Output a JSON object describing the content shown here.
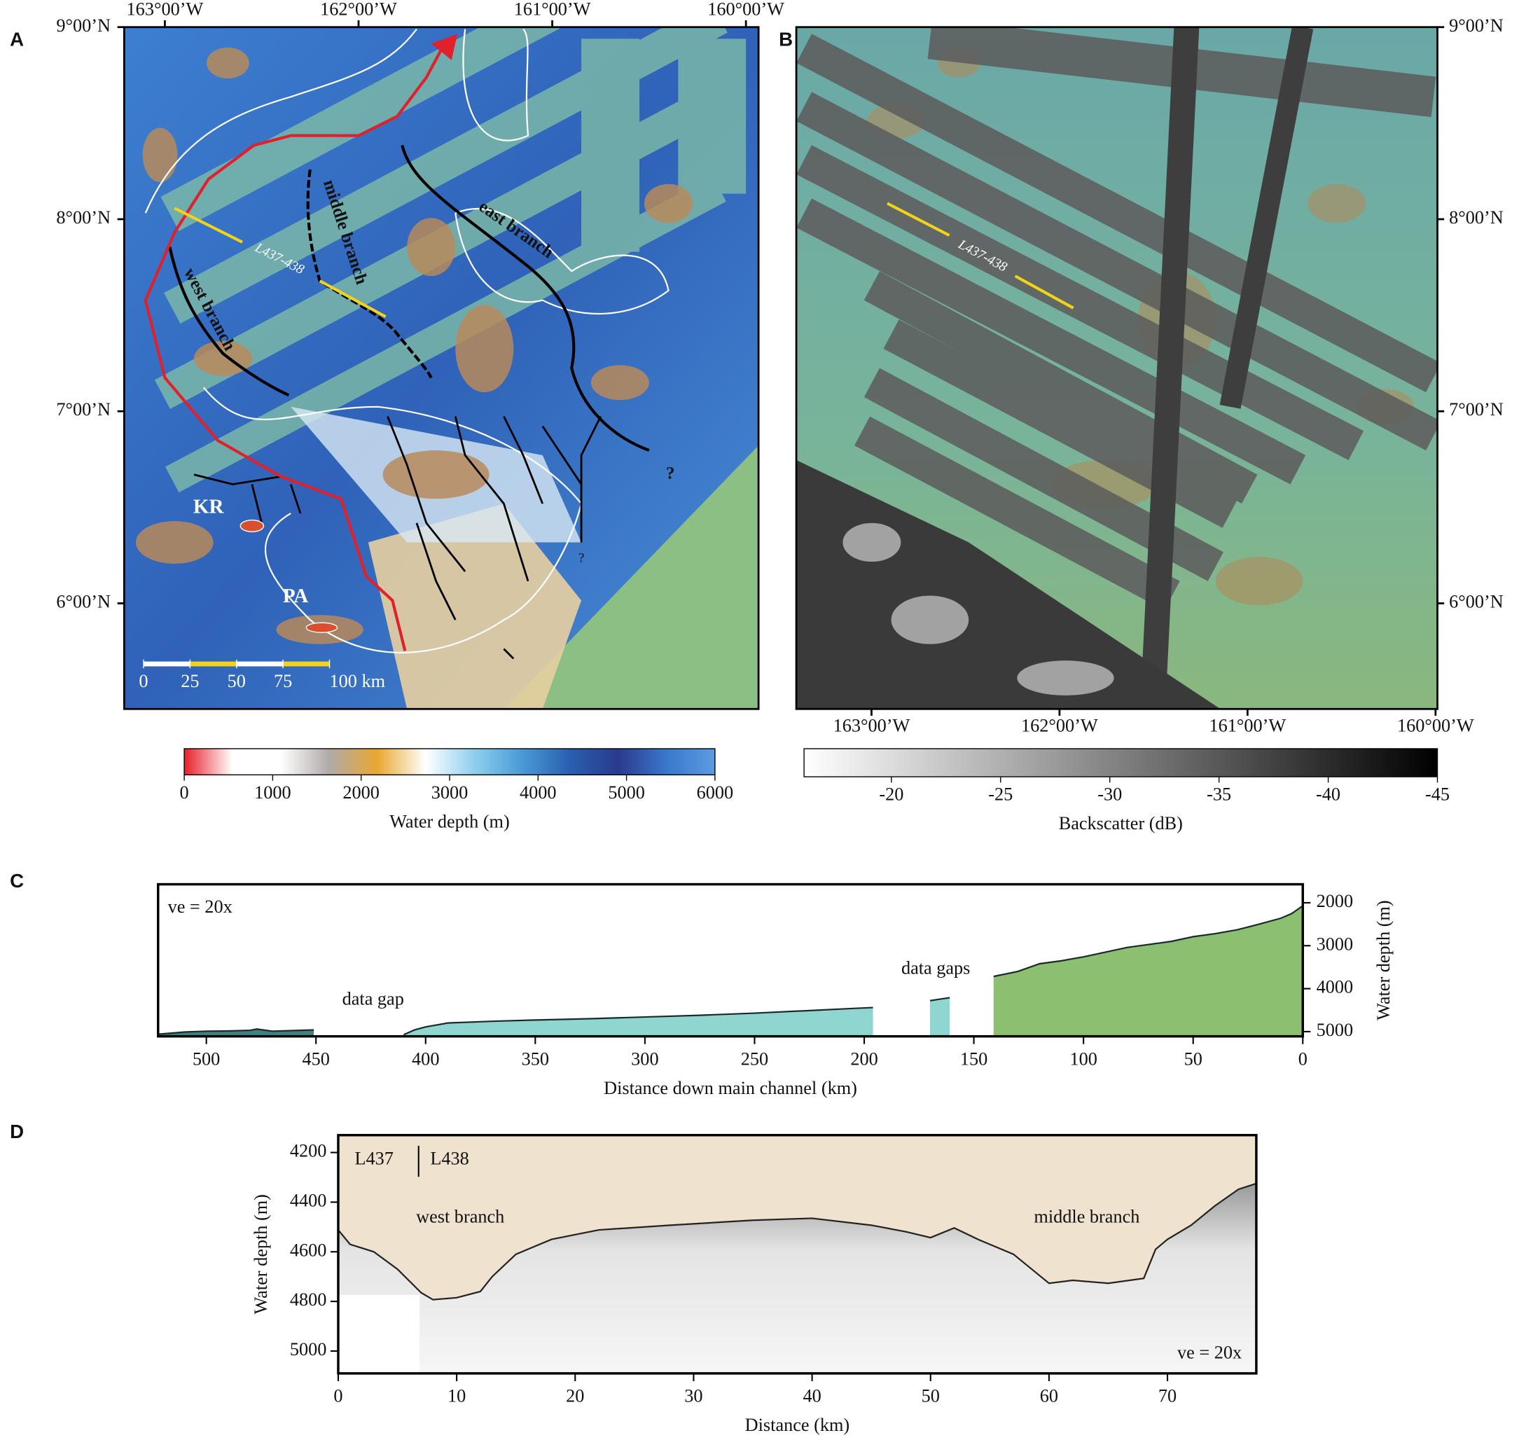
{
  "chart_data": [
    {
      "type": "map",
      "panel": "A",
      "xlim": [
        -163.21,
        -159.935
      ],
      "ylim": [
        5.45,
        9.0
      ],
      "xticks": [
        {
          "value": -163,
          "label": "163°00’W"
        },
        {
          "value": -162,
          "label": "162°00’W"
        },
        {
          "value": -161,
          "label": "161°00’W"
        },
        {
          "value": -160,
          "label": "160°00’W"
        }
      ],
      "yticks": [
        {
          "value": 9,
          "label": "9°00’N"
        },
        {
          "value": 8,
          "label": "8°00’N"
        },
        {
          "value": 7,
          "label": "7°00’N"
        },
        {
          "value": 6,
          "label": "6°00’N"
        }
      ],
      "annotations": [
        "west branch",
        "middle branch",
        "east branch",
        "L437-438",
        "KR",
        "PA",
        "?",
        "?"
      ],
      "scale_bar": {
        "ticks": [
          0,
          25,
          50,
          75,
          {
            "value": 100,
            "label": "100 km"
          }
        ],
        "colors": [
          "#ffffff",
          "#f2d21b"
        ]
      },
      "colorbar": {
        "title": "Water depth (m)",
        "lim": [
          0,
          6000
        ],
        "ticks": [
          0,
          1000,
          2000,
          3000,
          4000,
          5000,
          6000
        ],
        "colors": [
          "#e8202a",
          "#ffffff",
          "#ffffff",
          "#b0aaa8",
          "#e8a830",
          "#ffffff",
          "#8fd0ee",
          "#4a9ad6",
          "#2a5eb0",
          "#2a3a8e",
          "#3a78cc",
          "#5a9ce0"
        ]
      }
    },
    {
      "type": "map",
      "panel": "B",
      "xlim": [
        -163.4,
        -159.99
      ],
      "ylim": [
        5.45,
        9.0
      ],
      "xticks": [
        {
          "value": -163,
          "label": "163°00’W"
        },
        {
          "value": -162,
          "label": "162°00’W"
        },
        {
          "value": -161,
          "label": "161°00’W"
        },
        {
          "value": -160,
          "label": "160°00’W"
        }
      ],
      "yticks": [
        {
          "value": 9,
          "label": "9°00’N"
        },
        {
          "value": 8,
          "label": "8°00’N"
        },
        {
          "value": 7,
          "label": "7°00’N"
        },
        {
          "value": 6,
          "label": "6°00’N"
        }
      ],
      "annotations": [
        "L437-438"
      ],
      "colorbar": {
        "title": "Backscatter (dB)",
        "lim": [
          -16,
          -45
        ],
        "ticks": [
          -20,
          -25,
          -30,
          -35,
          -40,
          -45
        ],
        "colors": [
          "#ffffff",
          "#000000"
        ]
      }
    },
    {
      "type": "area",
      "panel": "C",
      "xlabel": "Distance down main channel (km)",
      "ylabel": "Water depth (m)",
      "annotations": [
        "ve = 20x",
        "data gap",
        "data gaps"
      ],
      "x": [
        522,
        510,
        500,
        490,
        480,
        477,
        470,
        460,
        451,
        430,
        410,
        405,
        400,
        390,
        370,
        350,
        325,
        300,
        275,
        250,
        225,
        205,
        196,
        185,
        170,
        165,
        161,
        150,
        141,
        130,
        120,
        110,
        100,
        90,
        80,
        70,
        60,
        50,
        40,
        30,
        20,
        10,
        5,
        0
      ],
      "values": [
        5060,
        5010,
        4990,
        4985,
        4970,
        4940,
        4990,
        4975,
        4960,
        null,
        5070,
        4960,
        4890,
        4800,
        4760,
        4730,
        4700,
        4660,
        4620,
        4570,
        4510,
        4460,
        4440,
        null,
        4280,
        4240,
        4210,
        null,
        3715,
        3600,
        3420,
        3350,
        3260,
        3150,
        3040,
        2970,
        2900,
        2790,
        2720,
        2630,
        2500,
        2360,
        2250,
        2070
      ],
      "piece_colors": [
        "#3f8080",
        "#8fd6d0",
        "#8fd6d0",
        "#8cbf70"
      ],
      "color": "#1a2a2a",
      "xlim": [
        522,
        0
      ],
      "ylim": [
        5110,
        1570
      ],
      "xticks": [
        500,
        450,
        400,
        350,
        300,
        250,
        200,
        150,
        100,
        50,
        0
      ],
      "yticks": [
        2000,
        3000,
        4000,
        5000
      ]
    },
    {
      "type": "line",
      "panel": "D",
      "xlabel": "Distance (km)",
      "ylabel": "Water depth (m)",
      "annotations": [
        "L437",
        "L438",
        "west branch",
        "middle branch",
        "ve = 20x"
      ],
      "x": [
        0,
        1,
        3,
        5,
        7,
        8,
        10,
        12,
        13,
        15,
        18,
        22,
        28,
        35,
        40,
        45,
        48,
        50,
        52,
        54,
        57,
        59,
        60,
        62,
        65,
        68,
        69,
        70,
        72,
        74,
        76,
        77.5
      ],
      "values": [
        4512,
        4570,
        4600,
        4670,
        4765,
        4793,
        4785,
        4760,
        4700,
        4610,
        4550,
        4512,
        4493,
        4473,
        4465,
        4493,
        4520,
        4543,
        4504,
        4550,
        4610,
        4688,
        4727,
        4715,
        4727,
        4707,
        4590,
        4550,
        4493,
        4415,
        4348,
        4325
      ],
      "color": "#222222",
      "fill_color": "#efe2cf",
      "xlim": [
        0,
        77.5
      ],
      "ylim": [
        5090,
        4130
      ],
      "xticks": [
        0,
        10,
        20,
        30,
        40,
        50,
        60,
        70
      ],
      "yticks": [
        4200,
        4400,
        4600,
        4800,
        5000
      ]
    }
  ]
}
